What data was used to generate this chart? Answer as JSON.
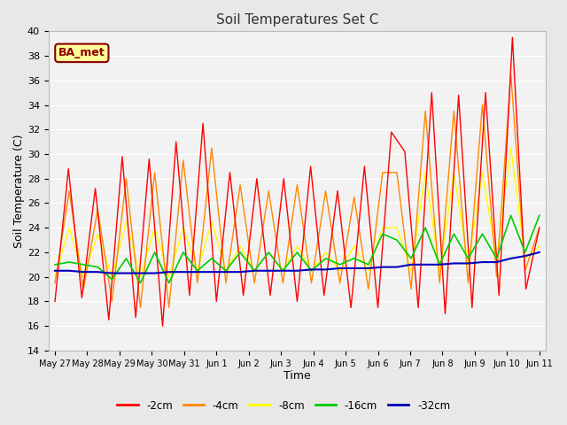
{
  "title": "Soil Temperatures Set C",
  "xlabel": "Time",
  "ylabel": "Soil Temperature (C)",
  "ylim": [
    14,
    40
  ],
  "yticks": [
    14,
    16,
    18,
    20,
    22,
    24,
    26,
    28,
    30,
    32,
    34,
    36,
    38,
    40
  ],
  "bg_color": "#e8e8e8",
  "plot_bg": "#e8e8e8",
  "annotation_text": "BA_met",
  "annotation_bg": "#ffff99",
  "annotation_border": "#8B0000",
  "series_colors": {
    "-2cm": "#ff0000",
    "-4cm": "#ff8800",
    "-8cm": "#ffff00",
    "-16cm": "#00cc00",
    "-32cm": "#0000bb"
  },
  "xtick_labels": [
    "May 27",
    "May 28",
    "May 29",
    "May 30",
    "May 31",
    "Jun 1",
    "Jun 2",
    "Jun 3",
    "Jun 4",
    "Jun 5",
    "Jun 6",
    "Jun 7",
    "Jun 8",
    "Jun 9",
    "Jun 10",
    "Jun 11"
  ],
  "x_positions": [
    0,
    1,
    2,
    3,
    4,
    5,
    6,
    7,
    8,
    9,
    10,
    11,
    12,
    13,
    14,
    15
  ],
  "data_2cm": [
    18.0,
    28.8,
    18.3,
    27.2,
    16.5,
    29.8,
    16.7,
    29.6,
    16.0,
    31.0,
    18.5,
    32.5,
    18.0,
    28.5,
    18.5,
    28.0,
    18.5,
    28.0,
    18.0,
    29.0,
    18.5,
    27.0,
    17.5,
    29.0,
    17.5,
    31.8,
    30.2,
    17.5,
    35.0,
    17.0,
    34.8,
    17.5,
    35.0,
    18.5,
    39.5,
    19.0,
    24.0
  ],
  "data_4cm": [
    19.5,
    27.0,
    19.0,
    25.5,
    18.0,
    28.0,
    17.5,
    28.5,
    17.5,
    29.5,
    19.5,
    30.5,
    19.5,
    27.5,
    19.5,
    27.0,
    19.5,
    27.5,
    19.5,
    27.0,
    19.5,
    26.5,
    19.0,
    28.5,
    28.5,
    19.0,
    33.5,
    19.5,
    33.5,
    19.5,
    34.0,
    20.0,
    36.5,
    20.5,
    24.0
  ],
  "data_8cm": [
    20.0,
    24.0,
    20.0,
    23.5,
    20.0,
    24.5,
    20.0,
    24.0,
    20.0,
    24.0,
    20.5,
    24.5,
    20.5,
    22.5,
    20.5,
    22.0,
    20.5,
    22.5,
    20.5,
    22.0,
    20.5,
    22.5,
    20.5,
    24.0,
    24.0,
    20.5,
    28.5,
    20.5,
    28.5,
    21.0,
    28.5,
    21.5,
    30.5,
    21.5,
    22.5
  ],
  "data_16cm": [
    21.0,
    21.2,
    21.0,
    20.8,
    19.8,
    21.5,
    19.5,
    22.0,
    19.5,
    22.0,
    20.5,
    21.5,
    20.5,
    22.0,
    20.5,
    22.0,
    20.5,
    22.0,
    20.5,
    21.5,
    21.0,
    21.5,
    21.0,
    23.5,
    23.0,
    21.5,
    24.0,
    21.0,
    23.5,
    21.5,
    23.5,
    21.5,
    25.0,
    22.0,
    25.0
  ],
  "data_32cm": [
    20.5,
    20.5,
    20.4,
    20.4,
    20.3,
    20.3,
    20.3,
    20.3,
    20.4,
    20.4,
    20.4,
    20.4,
    20.4,
    20.4,
    20.5,
    20.5,
    20.5,
    20.5,
    20.6,
    20.6,
    20.7,
    20.7,
    20.7,
    20.8,
    20.8,
    21.0,
    21.0,
    21.0,
    21.1,
    21.1,
    21.2,
    21.2,
    21.5,
    21.7,
    22.0
  ]
}
